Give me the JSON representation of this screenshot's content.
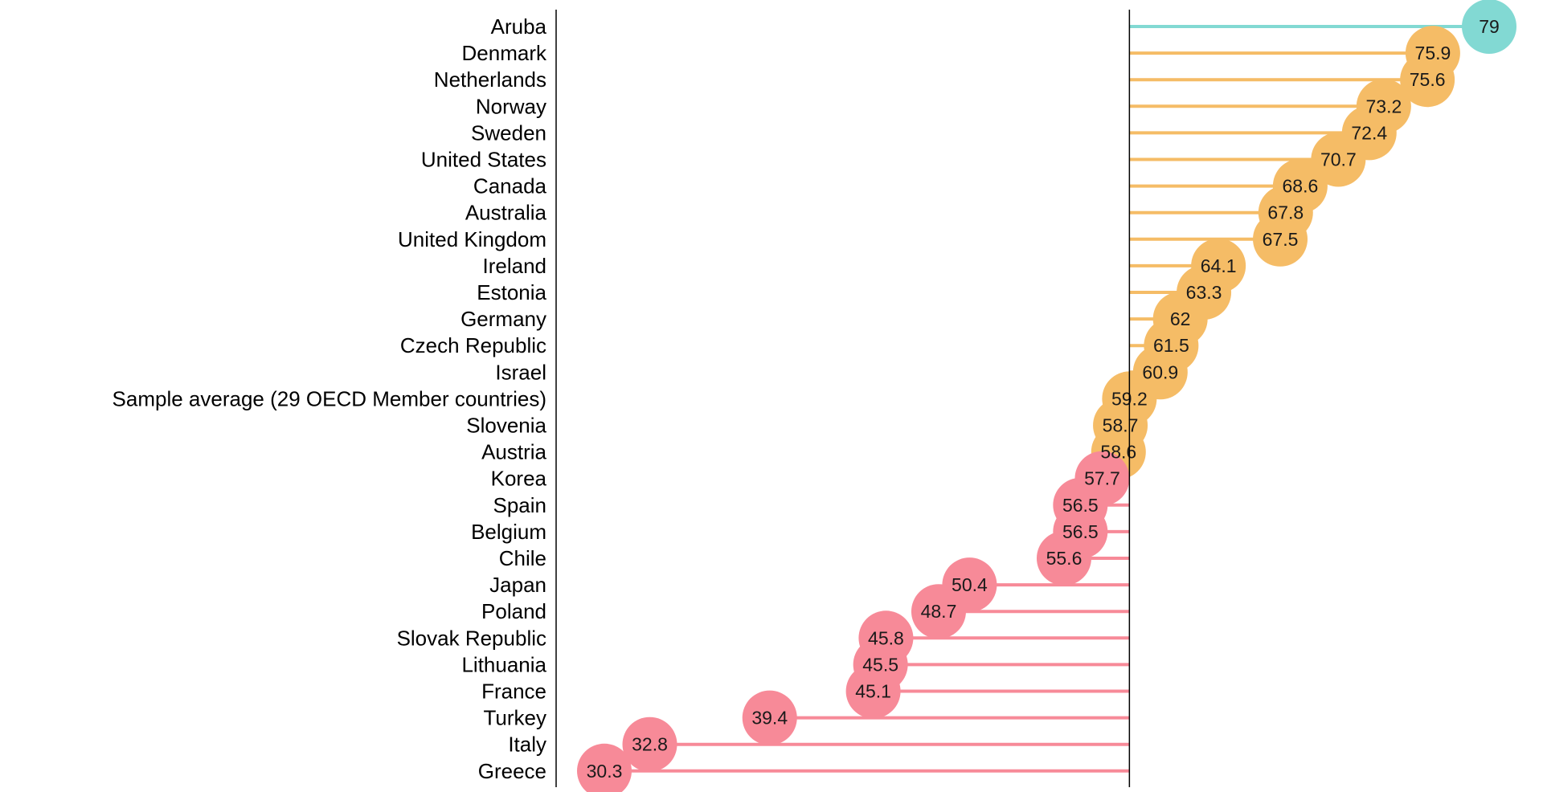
{
  "chart_data": {
    "type": "lollipop",
    "title": "",
    "xlabel": "",
    "ylabel": "",
    "reference_value": 59.2,
    "xlim": [
      30.3,
      79
    ],
    "colors": {
      "above": "#F5BC66",
      "below": "#F78A98",
      "top": "#82D9D3",
      "axis": "#000000"
    },
    "categories": [
      "Aruba",
      "Denmark",
      "Netherlands",
      "Norway",
      "Sweden",
      "United States",
      "Canada",
      "Australia",
      "United Kingdom",
      "Ireland",
      "Estonia",
      "Germany",
      "Czech Republic",
      "Israel",
      "Sample average (29 OECD Member countries)",
      "Slovenia",
      "Austria",
      "Korea",
      "Spain",
      "Belgium",
      "Chile",
      "Japan",
      "Poland",
      "Slovak Republic",
      "Lithuania",
      "France",
      "Turkey",
      "Italy",
      "Greece"
    ],
    "values": [
      79,
      75.9,
      75.6,
      73.2,
      72.4,
      70.7,
      68.6,
      67.8,
      67.5,
      64.1,
      63.3,
      62,
      61.5,
      60.9,
      59.2,
      58.7,
      58.6,
      57.7,
      56.5,
      56.5,
      55.6,
      50.4,
      48.7,
      45.8,
      45.5,
      45.1,
      39.4,
      32.8,
      30.3
    ],
    "value_labels": [
      "79",
      "75.9",
      "75.6",
      "73.2",
      "72.4",
      "70.7",
      "68.6",
      "67.8",
      "67.5",
      "64.1",
      "63.3",
      "62",
      "61.5",
      "60.9",
      "59.2",
      "58.7",
      "58.6",
      "57.7",
      "56.5",
      "56.5",
      "55.6",
      "50.4",
      "48.7",
      "45.8",
      "45.5",
      "45.1",
      "39.4",
      "32.8",
      "30.3"
    ],
    "groups": [
      "top",
      "above",
      "above",
      "above",
      "above",
      "above",
      "above",
      "above",
      "above",
      "above",
      "above",
      "above",
      "above",
      "above",
      "above",
      "above",
      "above",
      "below",
      "below",
      "below",
      "below",
      "below",
      "below",
      "below",
      "below",
      "below",
      "below",
      "below",
      "below"
    ]
  }
}
